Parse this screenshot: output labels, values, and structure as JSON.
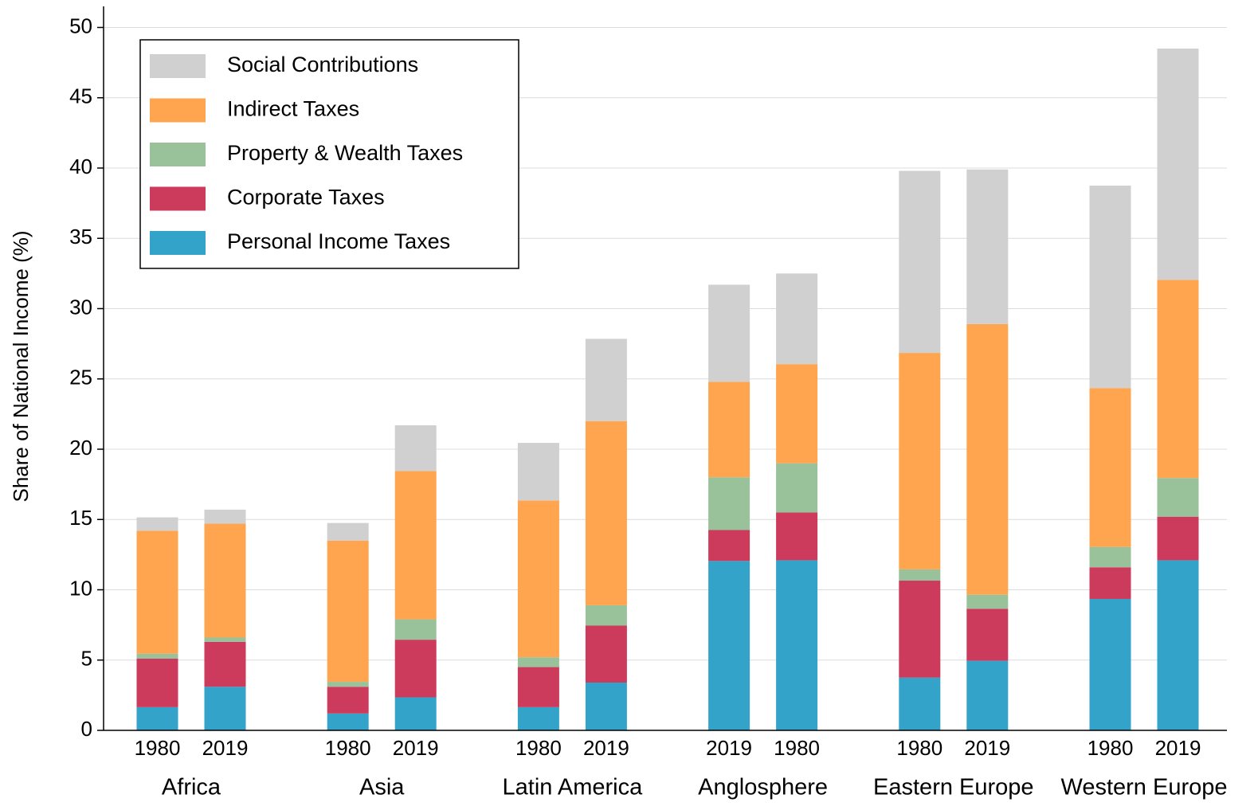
{
  "chart_data": {
    "type": "stacked_bar",
    "y_label": "Share of National Income (%)",
    "categories": [
      "1980",
      "2019",
      "1980",
      "2019",
      "1980",
      "2019",
      "2019",
      "1980",
      "1980",
      "2019",
      "1980",
      "2019"
    ],
    "groups": [
      "Africa",
      "Asia",
      "Latin America",
      "Anglosphere",
      "Eastern Europe",
      "Western Europe"
    ],
    "series": [
      {
        "name": "Personal Income Taxes",
        "color": "#33a3c9",
        "values": [
          1.65,
          3.1,
          1.2,
          2.35,
          1.65,
          3.4,
          12.05,
          12.1,
          3.75,
          4.95,
          9.35,
          12.1
        ]
      },
      {
        "name": "Corporate Taxes",
        "color": "#cc3a5c",
        "values": [
          3.45,
          3.2,
          1.9,
          4.1,
          2.85,
          4.05,
          2.2,
          3.4,
          6.9,
          3.7,
          2.25,
          3.1
        ]
      },
      {
        "name": "Property & Wealth Taxes",
        "color": "#99c19a",
        "values": [
          0.35,
          0.3,
          0.35,
          1.45,
          0.7,
          1.45,
          3.75,
          3.5,
          0.8,
          1.0,
          1.45,
          2.75
        ]
      },
      {
        "name": "Indirect Taxes",
        "color": "#ffa54f",
        "values": [
          8.75,
          8.1,
          10.05,
          10.55,
          11.15,
          13.1,
          6.8,
          7.05,
          15.4,
          19.25,
          11.3,
          14.1
        ]
      },
      {
        "name": "Social Contributions",
        "color": "#d0d0d0",
        "values": [
          0.95,
          1.0,
          1.25,
          3.25,
          4.1,
          5.85,
          6.9,
          6.45,
          12.95,
          11.0,
          14.4,
          16.45
        ]
      }
    ],
    "ylim": [
      0,
      51.5
    ],
    "yticks": [
      0,
      5,
      10,
      15,
      20,
      25,
      30,
      35,
      40,
      45,
      50
    ],
    "grid": true,
    "legend": "upper left"
  }
}
